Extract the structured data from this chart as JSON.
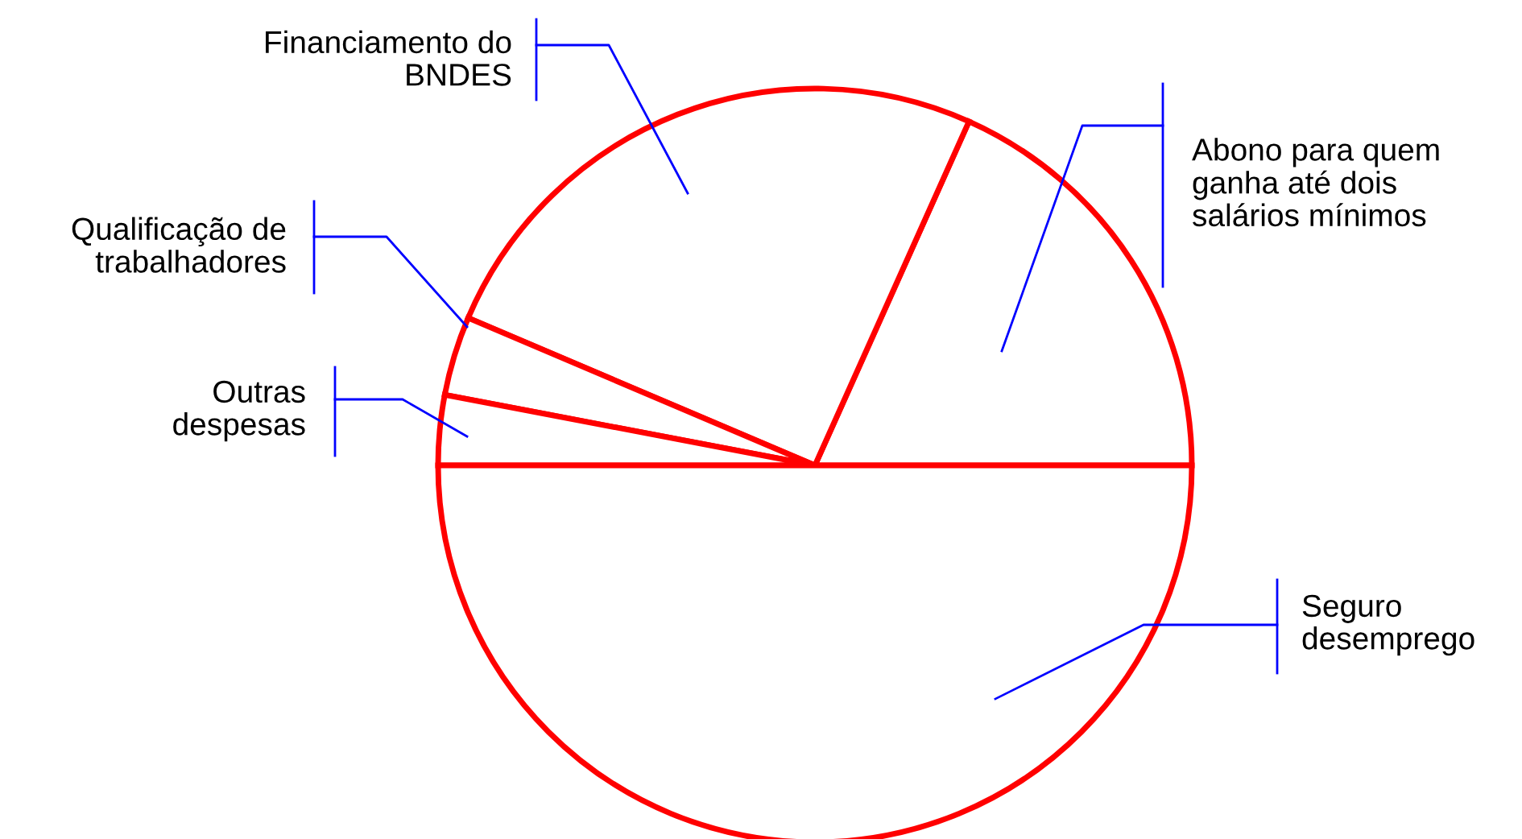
{
  "chart_data": {
    "type": "pie",
    "categories": [
      "Abono para quem ganha até dois salários mínimos",
      "Financiamento do BNDES",
      "Qualificação de trabalhadores",
      "Outras despesas",
      "Seguro desemprego"
    ],
    "values": [
      18.3,
      25.3,
      3.4,
      3.0,
      50.0
    ],
    "colors": [
      "#ffffff",
      "#ffffff",
      "#ffffff",
      "#ffffff",
      "#ffffff"
    ],
    "legend": false
  }
}
